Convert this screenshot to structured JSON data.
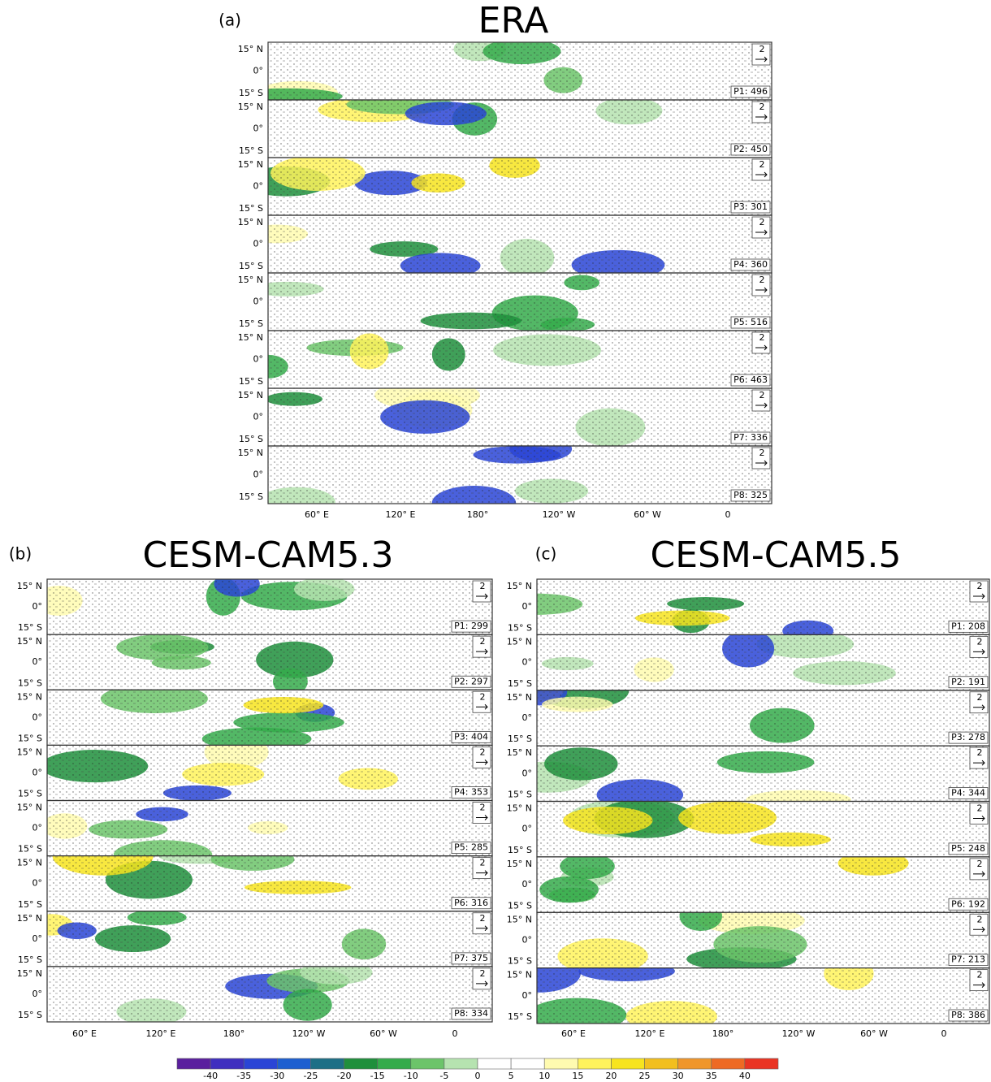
{
  "panels": [
    {
      "label": "(a)",
      "title": "ERA",
      "ref_vector": "2",
      "lat_labels": [
        "15° N",
        "0°",
        "15° S"
      ],
      "lon_labels": [
        "60° E",
        "120° E",
        "180°",
        "120° W",
        "60° W",
        "0"
      ],
      "phases": [
        "P1: 496",
        "P2: 450",
        "P3: 301",
        "P4: 360",
        "P5: 516",
        "P6: 463",
        "P7: 336",
        "P8: 325"
      ]
    },
    {
      "label": "(b)",
      "title": "CESM-CAM5.3",
      "ref_vector": "2",
      "lat_labels": [
        "15° N",
        "0°",
        "15° S"
      ],
      "lon_labels": [
        "60° E",
        "120° E",
        "180°",
        "120° W",
        "60° W",
        "0"
      ],
      "phases": [
        "P1: 299",
        "P2: 297",
        "P3: 404",
        "P4: 353",
        "P5: 285",
        "P6: 316",
        "P7: 375",
        "P8: 334"
      ]
    },
    {
      "label": "(c)",
      "title": "CESM-CAM5.5",
      "ref_vector": "2",
      "lat_labels": [
        "15° N",
        "0°",
        "15° S"
      ],
      "lon_labels": [
        "60° E",
        "120° E",
        "180°",
        "120° W",
        "60° W",
        "0"
      ],
      "phases": [
        "P1: 208",
        "P2: 191",
        "P3: 278",
        "P4: 344",
        "P5: 248",
        "P6: 192",
        "P7: 213",
        "P8: 386"
      ]
    }
  ],
  "colorbar": {
    "colors": [
      "#5a1f9e",
      "#3f2fbf",
      "#2a45d6",
      "#1d5fd0",
      "#1d6f86",
      "#1f8f3c",
      "#35ab4b",
      "#6cc46a",
      "#b6e3b0",
      "#ffffff",
      "#ffffff",
      "#fffbb0",
      "#fff35c",
      "#f7e41e",
      "#f2bf1e",
      "#f0962a",
      "#ee6a24",
      "#ea3423"
    ],
    "ticks": [
      -40,
      -35,
      -30,
      -25,
      -20,
      -15,
      -10,
      -5,
      0,
      5,
      10,
      15,
      20,
      25,
      30,
      35,
      40
    ]
  }
}
